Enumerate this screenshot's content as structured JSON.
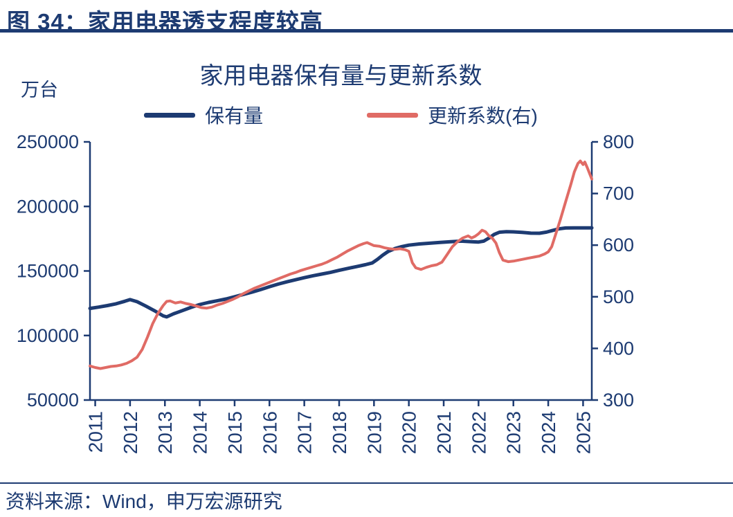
{
  "header": {
    "title": "图 34：家用电器透支程度较高"
  },
  "source": {
    "text": "资料来源：Wind，申万宏源研究"
  },
  "colors": {
    "brand_navy": "#1D3B72",
    "accent_red": "#E06B65"
  },
  "chart_data": {
    "type": "line",
    "title": "家用电器保有量与更新系数",
    "unit_label": "万台",
    "grid": false,
    "legend_position": "top",
    "x_range": [
      2010.85,
      2025.25
    ],
    "x_ticks": [
      2011,
      2012,
      2013,
      2014,
      2015,
      2016,
      2017,
      2018,
      2019,
      2020,
      2021,
      2022,
      2023,
      2024,
      2025
    ],
    "left_axis": {
      "ticks": [
        50000,
        100000,
        150000,
        200000,
        250000
      ],
      "range": [
        50000,
        250000
      ]
    },
    "right_axis": {
      "ticks": [
        300,
        400,
        500,
        600,
        700,
        800
      ],
      "range": [
        300,
        800
      ]
    },
    "series": [
      {
        "id": "holdings",
        "name": "保有量",
        "axis": "left",
        "color": "#1D3B72",
        "width": 5,
        "points": [
          [
            2010.85,
            121000
          ],
          [
            2011.1,
            122000
          ],
          [
            2011.35,
            123200
          ],
          [
            2011.6,
            124600
          ],
          [
            2011.85,
            126500
          ],
          [
            2012.0,
            127800
          ],
          [
            2012.2,
            126200
          ],
          [
            2012.45,
            122800
          ],
          [
            2012.7,
            119200
          ],
          [
            2012.95,
            115200
          ],
          [
            2013.05,
            114400
          ],
          [
            2013.25,
            116800
          ],
          [
            2013.5,
            119300
          ],
          [
            2013.75,
            121800
          ],
          [
            2014.0,
            124000
          ],
          [
            2014.25,
            125600
          ],
          [
            2014.5,
            126900
          ],
          [
            2014.75,
            128300
          ],
          [
            2015.0,
            130000
          ],
          [
            2015.25,
            131800
          ],
          [
            2015.5,
            133600
          ],
          [
            2015.75,
            135600
          ],
          [
            2016.0,
            137800
          ],
          [
            2016.25,
            139800
          ],
          [
            2016.5,
            141600
          ],
          [
            2016.75,
            143200
          ],
          [
            2017.0,
            144800
          ],
          [
            2017.25,
            146300
          ],
          [
            2017.5,
            147600
          ],
          [
            2017.75,
            148900
          ],
          [
            2018.0,
            150500
          ],
          [
            2018.25,
            152000
          ],
          [
            2018.5,
            153400
          ],
          [
            2018.75,
            154800
          ],
          [
            2018.95,
            156200
          ],
          [
            2019.1,
            159000
          ],
          [
            2019.25,
            162200
          ],
          [
            2019.4,
            165000
          ],
          [
            2019.6,
            167300
          ],
          [
            2019.8,
            168900
          ],
          [
            2020.0,
            170000
          ],
          [
            2020.3,
            170900
          ],
          [
            2020.6,
            171500
          ],
          [
            2020.9,
            172100
          ],
          [
            2021.2,
            172700
          ],
          [
            2021.5,
            173100
          ],
          [
            2021.8,
            172700
          ],
          [
            2022.0,
            172400
          ],
          [
            2022.15,
            173100
          ],
          [
            2022.3,
            175500
          ],
          [
            2022.45,
            178300
          ],
          [
            2022.6,
            180000
          ],
          [
            2022.8,
            180400
          ],
          [
            2023.0,
            180300
          ],
          [
            2023.25,
            179900
          ],
          [
            2023.5,
            179300
          ],
          [
            2023.75,
            179200
          ],
          [
            2023.95,
            180100
          ],
          [
            2024.1,
            181200
          ],
          [
            2024.3,
            182600
          ],
          [
            2024.5,
            183300
          ],
          [
            2024.75,
            183400
          ],
          [
            2025.0,
            183400
          ],
          [
            2025.25,
            183400
          ]
        ]
      },
      {
        "id": "renewal",
        "name": "更新系数(右)",
        "axis": "right",
        "color": "#E06B65",
        "width": 4,
        "points": [
          [
            2010.85,
            366
          ],
          [
            2011.0,
            363
          ],
          [
            2011.15,
            361
          ],
          [
            2011.3,
            363
          ],
          [
            2011.45,
            365
          ],
          [
            2011.6,
            366
          ],
          [
            2011.75,
            368
          ],
          [
            2011.9,
            371
          ],
          [
            2012.05,
            376
          ],
          [
            2012.2,
            383
          ],
          [
            2012.35,
            398
          ],
          [
            2012.5,
            422
          ],
          [
            2012.65,
            448
          ],
          [
            2012.8,
            468
          ],
          [
            2012.95,
            483
          ],
          [
            2013.05,
            491
          ],
          [
            2013.15,
            492
          ],
          [
            2013.3,
            488
          ],
          [
            2013.45,
            490
          ],
          [
            2013.6,
            487
          ],
          [
            2013.75,
            485
          ],
          [
            2013.9,
            482
          ],
          [
            2014.05,
            479
          ],
          [
            2014.2,
            478
          ],
          [
            2014.35,
            480
          ],
          [
            2014.5,
            484
          ],
          [
            2014.65,
            487
          ],
          [
            2014.8,
            491
          ],
          [
            2014.95,
            495
          ],
          [
            2015.1,
            500
          ],
          [
            2015.25,
            506
          ],
          [
            2015.4,
            511
          ],
          [
            2015.55,
            516
          ],
          [
            2015.7,
            520
          ],
          [
            2015.85,
            524
          ],
          [
            2016.0,
            528
          ],
          [
            2016.15,
            532
          ],
          [
            2016.3,
            536
          ],
          [
            2016.45,
            540
          ],
          [
            2016.6,
            544
          ],
          [
            2016.75,
            547
          ],
          [
            2016.9,
            551
          ],
          [
            2017.05,
            554
          ],
          [
            2017.2,
            557
          ],
          [
            2017.35,
            560
          ],
          [
            2017.5,
            563
          ],
          [
            2017.65,
            567
          ],
          [
            2017.8,
            572
          ],
          [
            2017.95,
            577
          ],
          [
            2018.1,
            583
          ],
          [
            2018.25,
            589
          ],
          [
            2018.4,
            594
          ],
          [
            2018.55,
            599
          ],
          [
            2018.7,
            603
          ],
          [
            2018.8,
            605
          ],
          [
            2018.9,
            602
          ],
          [
            2019.0,
            599
          ],
          [
            2019.15,
            598
          ],
          [
            2019.3,
            595
          ],
          [
            2019.45,
            593
          ],
          [
            2019.6,
            592
          ],
          [
            2019.75,
            593
          ],
          [
            2019.9,
            591
          ],
          [
            2020.0,
            588
          ],
          [
            2020.1,
            566
          ],
          [
            2020.2,
            556
          ],
          [
            2020.35,
            553
          ],
          [
            2020.5,
            557
          ],
          [
            2020.65,
            560
          ],
          [
            2020.8,
            562
          ],
          [
            2020.95,
            567
          ],
          [
            2021.1,
            582
          ],
          [
            2021.25,
            597
          ],
          [
            2021.4,
            607
          ],
          [
            2021.55,
            614
          ],
          [
            2021.7,
            618
          ],
          [
            2021.8,
            614
          ],
          [
            2021.9,
            617
          ],
          [
            2022.0,
            622
          ],
          [
            2022.1,
            629
          ],
          [
            2022.2,
            626
          ],
          [
            2022.3,
            618
          ],
          [
            2022.4,
            613
          ],
          [
            2022.5,
            604
          ],
          [
            2022.6,
            585
          ],
          [
            2022.7,
            571
          ],
          [
            2022.85,
            568
          ],
          [
            2023.0,
            569
          ],
          [
            2023.15,
            571
          ],
          [
            2023.3,
            573
          ],
          [
            2023.45,
            575
          ],
          [
            2023.6,
            577
          ],
          [
            2023.75,
            579
          ],
          [
            2023.9,
            583
          ],
          [
            2024.0,
            587
          ],
          [
            2024.1,
            597
          ],
          [
            2024.2,
            618
          ],
          [
            2024.35,
            650
          ],
          [
            2024.5,
            684
          ],
          [
            2024.65,
            718
          ],
          [
            2024.75,
            742
          ],
          [
            2024.85,
            758
          ],
          [
            2024.92,
            763
          ],
          [
            2025.0,
            756
          ],
          [
            2025.05,
            761
          ],
          [
            2025.12,
            750
          ],
          [
            2025.25,
            728
          ]
        ]
      }
    ]
  }
}
